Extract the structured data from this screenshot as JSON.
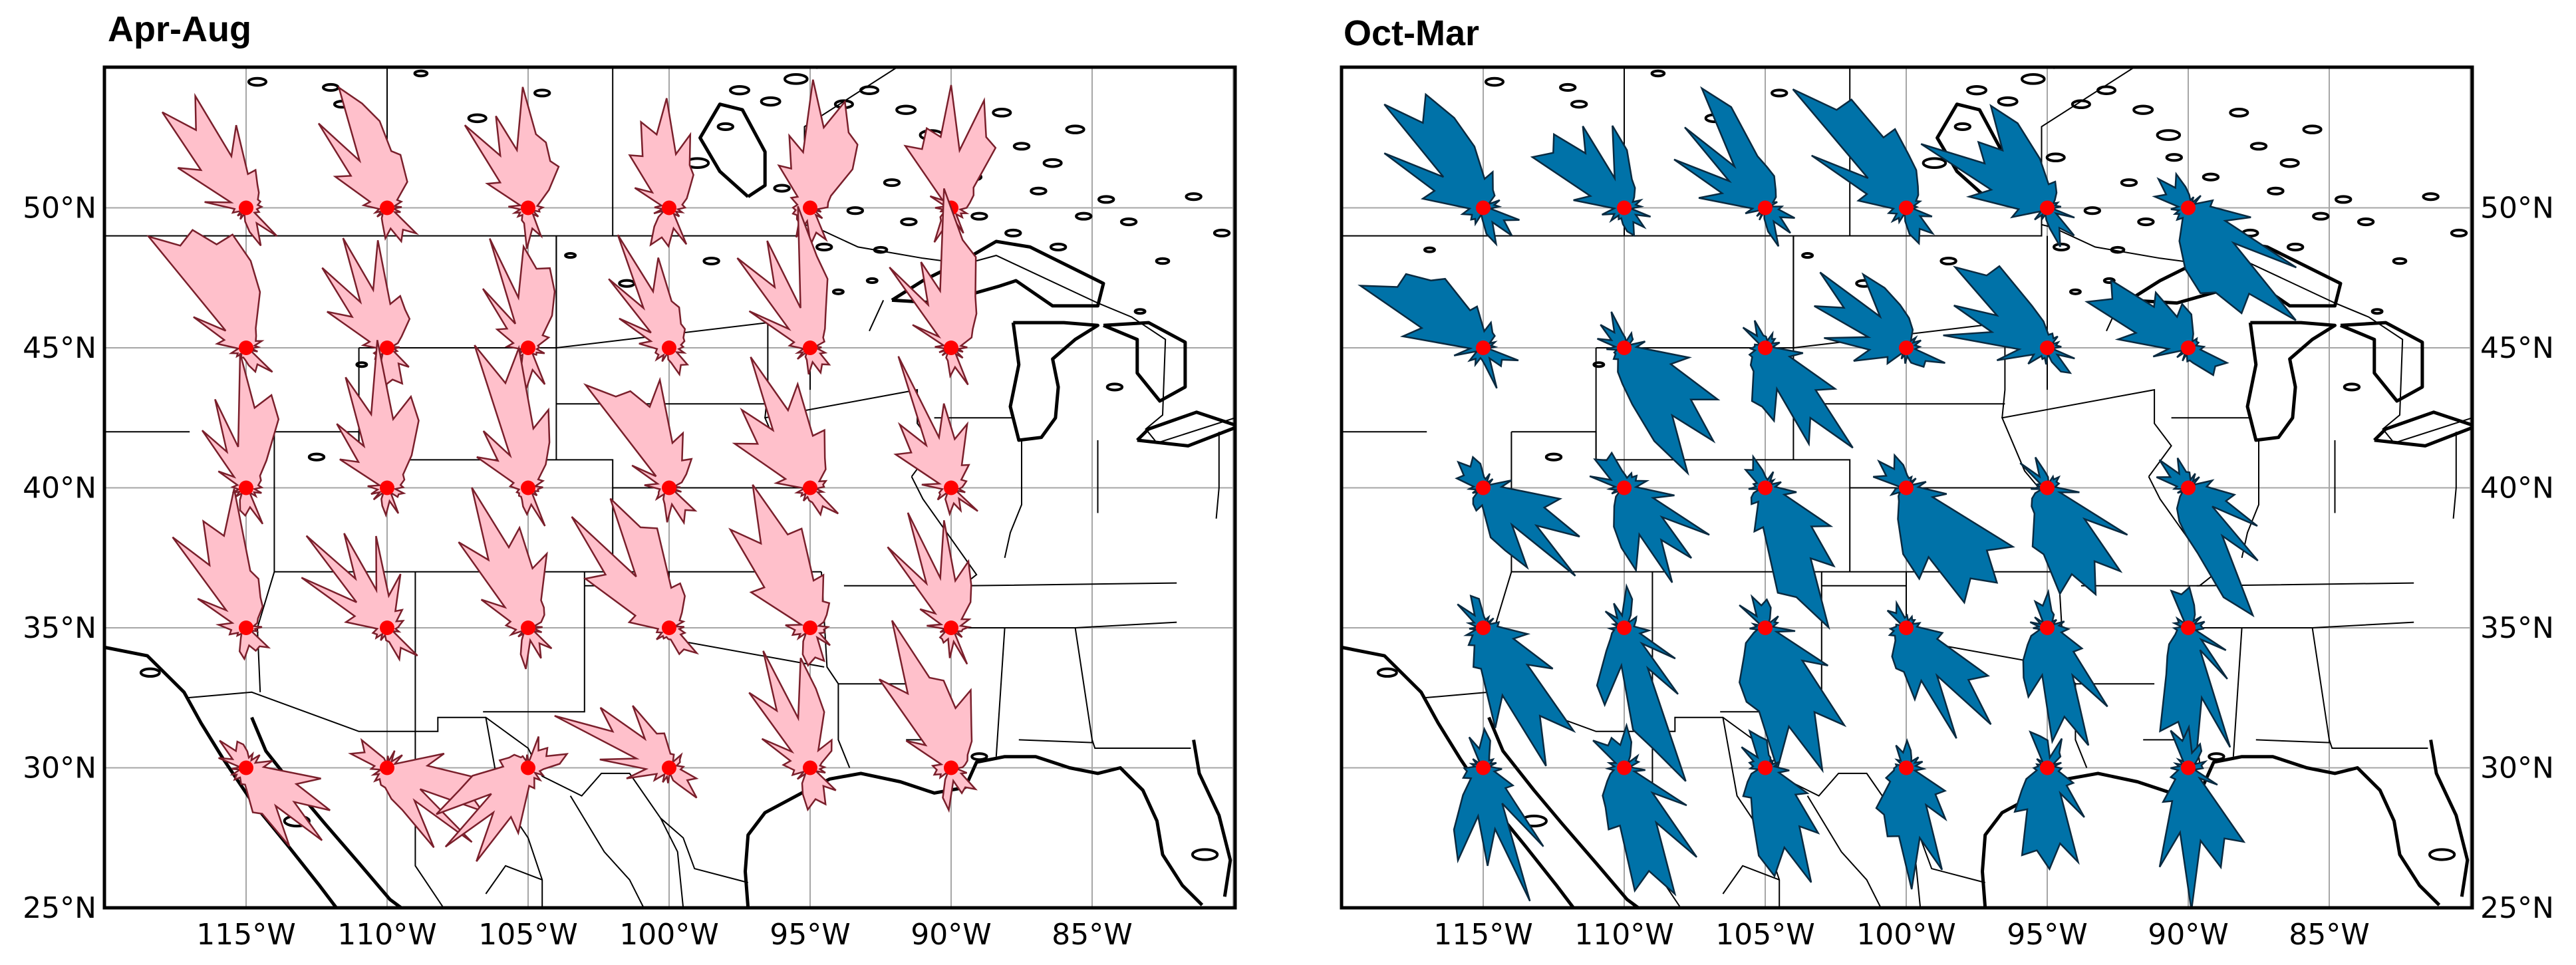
{
  "figure": {
    "panels": [
      {
        "title": "Apr-Aug",
        "fill_color": "#ffc0cb",
        "edge_color": "#7a1f2b",
        "y_tick_side": "left"
      },
      {
        "title": "Oct-Mar",
        "fill_color": "#0072a8",
        "edge_color": "#0a2a40",
        "y_tick_side": "right"
      }
    ],
    "x_ticks": [
      "115°W",
      "110°W",
      "105°W",
      "100°W",
      "95°W",
      "90°W",
      "85°W"
    ],
    "y_ticks": [
      "25°N",
      "30°N",
      "35°N",
      "40°N",
      "45°N",
      "50°N"
    ],
    "marker_color": "#ff0000",
    "gridlines": true
  },
  "chart_data": [
    {
      "type": "map-rose",
      "title": "Apr-Aug",
      "lon_range": [
        -120,
        -80
      ],
      "lat_range": [
        25,
        55
      ],
      "station_lons": [
        -115,
        -110,
        -105,
        -100,
        -95,
        -90
      ],
      "station_lats": [
        50,
        45,
        40,
        35,
        30
      ],
      "dominant_direction_deg": [
        [
          330,
          340,
          350,
          355,
          5,
          0
        ],
        [
          330,
          340,
          350,
          330,
          340,
          350
        ],
        [
          350,
          345,
          345,
          340,
          330,
          340
        ],
        [
          340,
          330,
          340,
          330,
          340,
          345
        ],
        [
          130,
          120,
          230,
          300,
          340,
          340
        ]
      ]
    },
    {
      "type": "map-rose",
      "title": "Oct-Mar",
      "lon_range": [
        -120,
        -80
      ],
      "lat_range": [
        25,
        55
      ],
      "station_lons": [
        -115,
        -110,
        -105,
        -100,
        -95,
        -90
      ],
      "station_lats": [
        50,
        45,
        40,
        35,
        30
      ],
      "dominant_direction_deg": [
        [
          320,
          320,
          315,
          320,
          310,
          140
        ],
        [
          310,
          140,
          150,
          300,
          300,
          300
        ],
        [
          130,
          140,
          150,
          140,
          150,
          140
        ],
        [
          150,
          160,
          160,
          150,
          170,
          170
        ],
        [
          170,
          160,
          160,
          170,
          175,
          175
        ]
      ]
    }
  ]
}
